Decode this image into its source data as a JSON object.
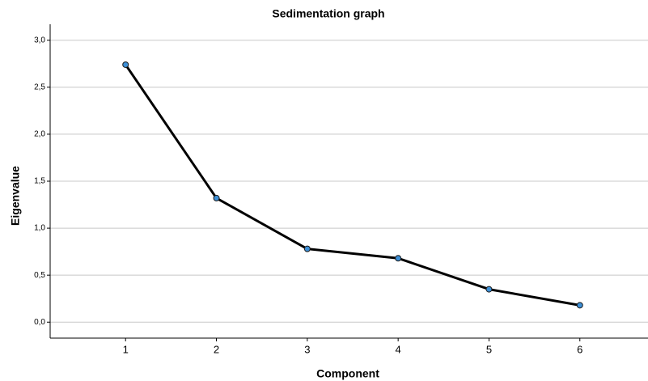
{
  "chart_data": {
    "type": "line",
    "title": "Sedimentation graph",
    "x_label": "Component",
    "y_label": "Eigenvalue",
    "x": [
      1,
      2,
      3,
      4,
      5,
      6
    ],
    "values": [
      2.74,
      1.32,
      0.78,
      0.68,
      0.35,
      0.18
    ],
    "color": "#000000",
    "marker_color": "#3d8fd6",
    "xlim": [
      0.17,
      6.75
    ],
    "xticks": [
      1,
      2,
      3,
      4,
      5,
      6
    ],
    "ylim": [
      -0.17,
      3.17
    ],
    "yticks": [
      {
        "value": 0,
        "label": "0,0"
      },
      {
        "value": 0.5,
        "label": "0,5"
      },
      {
        "value": 1,
        "label": "1,0"
      },
      {
        "value": 1.5,
        "label": "1,5"
      },
      {
        "value": 2,
        "label": "2,0"
      },
      {
        "value": 2.5,
        "label": "2,5"
      },
      {
        "value": 3,
        "label": "3,0"
      }
    ],
    "grid": true
  }
}
